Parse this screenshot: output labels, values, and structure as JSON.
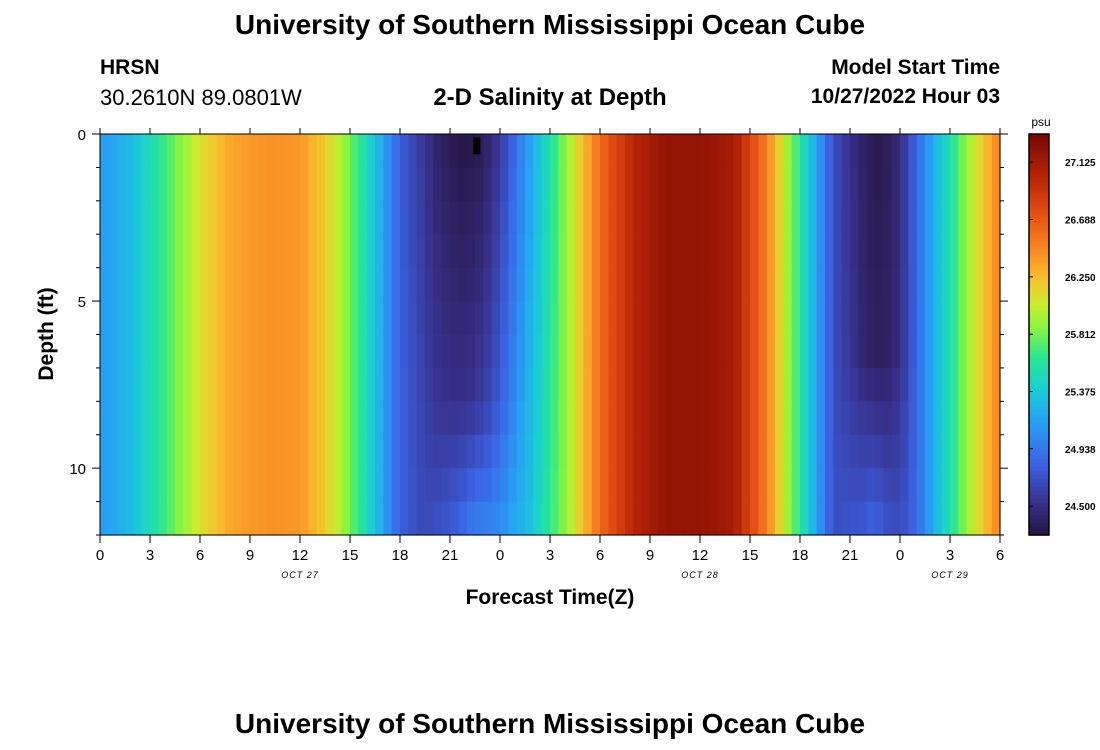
{
  "page": {
    "title": "University of Southern Mississippi Ocean Cube",
    "title_repeat": "University of Southern Mississippi Ocean Cube",
    "station": "HRSN",
    "coordinates": "30.2610N  89.0801W",
    "subtitle": "2-D Salinity at Depth",
    "model_start_label": "Model Start Time",
    "model_start_value": "10/27/2022 Hour 03"
  },
  "chart_data": {
    "type": "heatmap",
    "title": "2-D Salinity at Depth",
    "xlabel": "Forecast Time(Z)",
    "ylabel": "Depth (ft)",
    "x_tick_labels": [
      "0",
      "3",
      "6",
      "9",
      "12",
      "15",
      "18",
      "21",
      "0",
      "3",
      "6",
      "9",
      "12",
      "15",
      "18",
      "21",
      "0",
      "3",
      "6"
    ],
    "x_range_hours": [
      0,
      54
    ],
    "date_labels": [
      {
        "label": "OCT 27",
        "hour": 12
      },
      {
        "label": "OCT 28",
        "hour": 36
      },
      {
        "label": "OCT 29",
        "hour": 51
      }
    ],
    "y_tick_labels": [
      "0",
      "5",
      "10"
    ],
    "y_tick_values": [
      0,
      5,
      10
    ],
    "ylim": [
      0,
      12
    ],
    "colorbar": {
      "unit": "psu",
      "tick_labels": [
        "27.125",
        "26.688",
        "26.250",
        "25.812",
        "25.375",
        "24.938",
        "24.500"
      ],
      "tick_values": [
        27.125,
        26.688,
        26.25,
        25.812,
        25.375,
        24.938,
        24.5
      ],
      "range": [
        24.28,
        27.34
      ]
    },
    "salinity_profile": {
      "description": "surface salinity vs forecast hour",
      "hours": [
        0,
        2,
        4,
        6,
        8,
        10,
        12,
        14,
        16,
        18,
        20,
        21,
        22,
        23,
        24,
        26,
        28,
        30,
        32,
        34,
        36,
        38,
        40,
        42,
        44,
        46,
        47,
        48,
        50,
        52,
        54
      ],
      "psu": [
        25.1,
        25.3,
        25.7,
        26.1,
        26.35,
        26.42,
        26.4,
        26.1,
        25.5,
        24.8,
        24.45,
        24.36,
        24.33,
        24.4,
        24.6,
        25.2,
        25.9,
        26.6,
        27.0,
        27.2,
        27.2,
        27.1,
        26.5,
        25.6,
        24.7,
        24.4,
        24.36,
        24.5,
        25.2,
        25.9,
        26.5
      ]
    },
    "low_pockets": [
      {
        "center_hour": 22.5,
        "half_width_hours": 3.2,
        "depth_ft": 8,
        "surface_boost_psu": 0.05
      },
      {
        "center_hour": 46.5,
        "half_width_hours": 2.5,
        "depth_ft": 6.5,
        "surface_boost_psu": 0.05
      }
    ],
    "depth_effect": {
      "deep_hours_range": [
        18,
        28
      ],
      "deep_increase_psu_per_ft": 0.06
    }
  }
}
